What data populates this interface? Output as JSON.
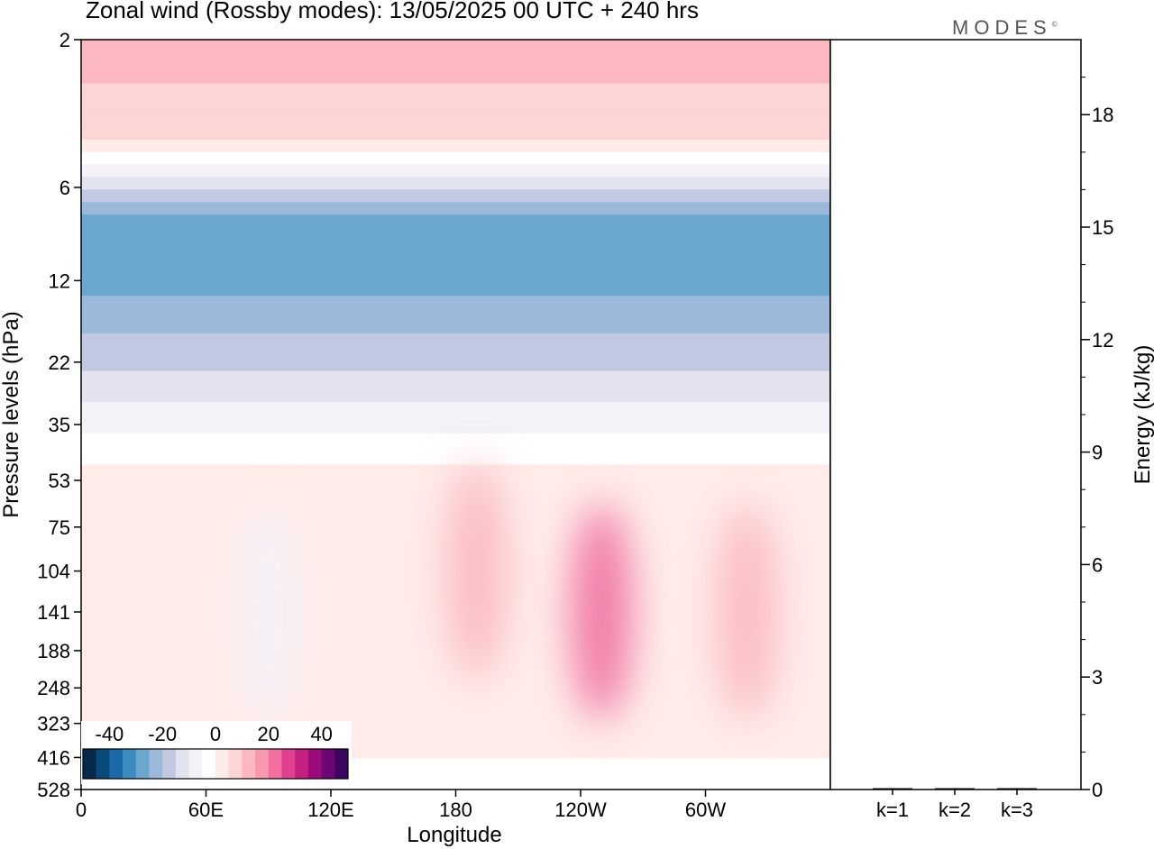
{
  "title": "Zonal wind (Rossby modes):  13/05/2025  00 UTC  + 240 hrs",
  "logo": "MODES",
  "logo_mark": "©",
  "chart_data": [
    {
      "type": "heatmap",
      "title": "Zonal wind (Rossby modes):  13/05/2025  00 UTC  + 240 hrs",
      "xlabel": "Longitude",
      "ylabel": "Pressure levels (hPa)",
      "x_ticks": [
        "0",
        "60E",
        "120E",
        "180",
        "120W",
        "60W"
      ],
      "x_tick_degrees": [
        0,
        60,
        120,
        180,
        240,
        300
      ],
      "xlim": [
        0,
        360
      ],
      "y_ticks": [
        "2",
        "6",
        "12",
        "22",
        "35",
        "53",
        "75",
        "104",
        "141",
        "188",
        "248",
        "323",
        "416",
        "528"
      ],
      "y_scale": "log",
      "colorbar": {
        "ticks": [
          "-40",
          "-20",
          "0",
          "20",
          "40"
        ],
        "range": [
          -50,
          50
        ],
        "step": 5,
        "colors": [
          "#05294a",
          "#0a4a7a",
          "#1a6aa5",
          "#3b8cc0",
          "#6aa6cd",
          "#9bbadb",
          "#c1c8e2",
          "#e3e3f0",
          "#f4f1f8",
          "#ffffff",
          "#ffece9",
          "#fdd5d5",
          "#fbb8c0",
          "#f898b0",
          "#f06ea0",
          "#e0408e",
          "#c42082",
          "#9c0a7a",
          "#6e0575",
          "#3e0560"
        ]
      },
      "wind_profile_by_level": [
        {
          "level": "2",
          "value": 12
        },
        {
          "level": "4",
          "value": 8
        },
        {
          "level": "6",
          "value": -14
        },
        {
          "level": "8",
          "value": -30
        },
        {
          "level": "12",
          "value": -27
        },
        {
          "level": "16",
          "value": -22
        },
        {
          "level": "22",
          "value": -16
        },
        {
          "level": "28",
          "value": -11
        },
        {
          "level": "35",
          "value": -6
        },
        {
          "level": "44",
          "value": -1
        },
        {
          "level": "53",
          "value": 2
        },
        {
          "level": "75",
          "value": 4
        },
        {
          "level": "104",
          "value": 4
        },
        {
          "level": "141",
          "value": 3
        },
        {
          "level": "188",
          "value": 3
        },
        {
          "level": "248",
          "value": 2
        },
        {
          "level": "323",
          "value": 1
        },
        {
          "level": "416",
          "value": 0
        },
        {
          "level": "528",
          "value": -1
        }
      ],
      "jet_features": [
        {
          "lon": 250,
          "level": "141",
          "value": 20
        },
        {
          "lon": 320,
          "level": "141",
          "value": 13
        },
        {
          "lon": 190,
          "level": "104",
          "value": 13
        },
        {
          "lon": 90,
          "level": "141",
          "value": -8
        }
      ]
    },
    {
      "type": "bar",
      "categories": [
        "k=1",
        "k=2",
        "k=3"
      ],
      "values": [
        0.02,
        0.02,
        0.02
      ],
      "ylabel": "Energy (kJ/kg)",
      "y_ticks": [
        "0",
        "3",
        "6",
        "9",
        "12",
        "15",
        "18"
      ],
      "ylim": [
        0,
        20
      ]
    }
  ]
}
